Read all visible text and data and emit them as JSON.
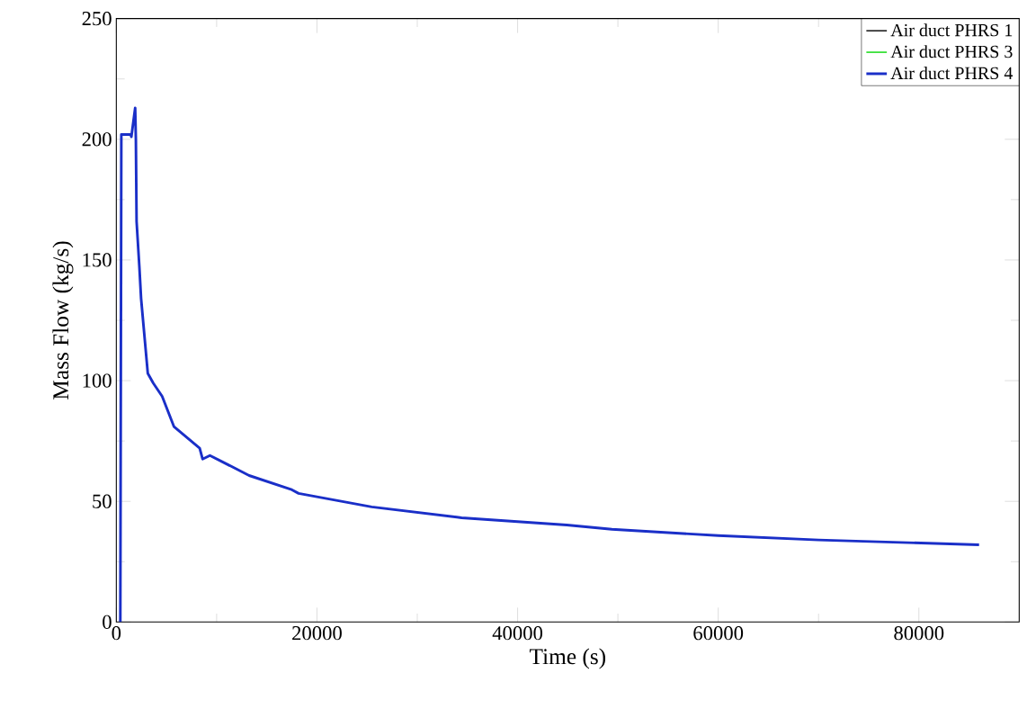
{
  "chart_data": {
    "type": "line",
    "xlabel": "Time (s)",
    "ylabel": "Mass Flow (kg/s)",
    "xlim": [
      0,
      90000
    ],
    "ylim": [
      0,
      250
    ],
    "xticks": [
      0,
      20000,
      40000,
      60000,
      80000
    ],
    "yticks": [
      0,
      50,
      100,
      150,
      200,
      250
    ],
    "grid": false,
    "legend": "top right",
    "x": [
      400,
      500,
      1430,
      1500,
      1880,
      1950,
      2020,
      2300,
      2470,
      3140,
      3680,
      4570,
      5740,
      8310,
      8600,
      9330,
      13240,
      17400,
      18170,
      25460,
      34420,
      44910,
      49400,
      60000,
      70000,
      86000
    ],
    "series": [
      {
        "name": "Air duct PHRS 1",
        "color": "#202020",
        "values": [
          null,
          null,
          null,
          null,
          null,
          null,
          null,
          null,
          null,
          null,
          null,
          null,
          null,
          null,
          null,
          null,
          null,
          null,
          null,
          null,
          null,
          null,
          null,
          null,
          null,
          null
        ]
      },
      {
        "name": "Air duct PHRS 3",
        "color": "#22dd22",
        "values": [
          null,
          null,
          null,
          null,
          null,
          null,
          null,
          null,
          null,
          null,
          null,
          null,
          null,
          null,
          null,
          null,
          null,
          null,
          null,
          null,
          null,
          null,
          null,
          null,
          null,
          null
        ]
      },
      {
        "name": "Air duct PHRS 4",
        "color": "#1a2fc8",
        "values": [
          0,
          202,
          202,
          201,
          213,
          200,
          166,
          147,
          134,
          103,
          99,
          93.5,
          81,
          72,
          67.5,
          69,
          60.7,
          55,
          53.3,
          47.7,
          43.2,
          40.2,
          38.4,
          35.8,
          34,
          32
        ]
      }
    ]
  }
}
